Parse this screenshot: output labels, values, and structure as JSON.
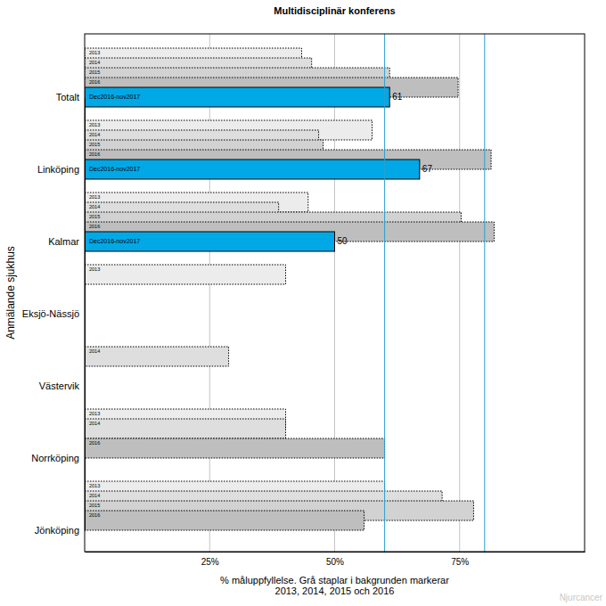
{
  "chart_data": {
    "type": "bar",
    "orientation": "horizontal",
    "title": "Multidisciplinär konferens",
    "x_label": [
      "% måluppfyllelse. Grå staplar i bakgrunden markerar",
      "2013, 2014, 2015 och 2016"
    ],
    "y_label": "Anmälande sjukhus",
    "watermark": "Njurcancer",
    "categories": [
      "Totalt",
      "Linköping",
      "Kalmar",
      "Eksjö-Nässjö",
      "Västervik",
      "Norrköping",
      "Jönköping"
    ],
    "series": [
      {
        "name": "2013",
        "color": "#ececec",
        "line_style": "dotted",
        "values": [
          43.4,
          57.5,
          44.7,
          40.2,
          null,
          40.2,
          60
        ]
      },
      {
        "name": "2014",
        "color": "#dedede",
        "line_style": "dotted",
        "values": [
          45.4,
          46.8,
          38.8,
          null,
          28.8,
          40.2,
          71.5
        ]
      },
      {
        "name": "2015",
        "color": "#d2d2d2",
        "line_style": "dotted",
        "values": [
          61,
          47.7,
          75.3,
          null,
          null,
          null,
          77.8
        ]
      },
      {
        "name": "2016",
        "color": "#bebebe",
        "line_style": "dotted",
        "values": [
          74.7,
          81.3,
          81.9,
          null,
          null,
          60,
          55.9
        ]
      },
      {
        "name": "Dec2016-nov2017",
        "color": "#00a9e6",
        "line_style": "solid",
        "data_labels": true,
        "values": [
          61,
          67,
          50,
          null,
          null,
          null,
          null
        ]
      }
    ],
    "xlim": [
      0,
      100
    ],
    "xticks": [
      {
        "value": 25,
        "label": "25%"
      },
      {
        "value": 50,
        "label": "50%"
      },
      {
        "value": 75,
        "label": "75%"
      }
    ],
    "grid": true,
    "target_lines": [
      60,
      80
    ]
  }
}
